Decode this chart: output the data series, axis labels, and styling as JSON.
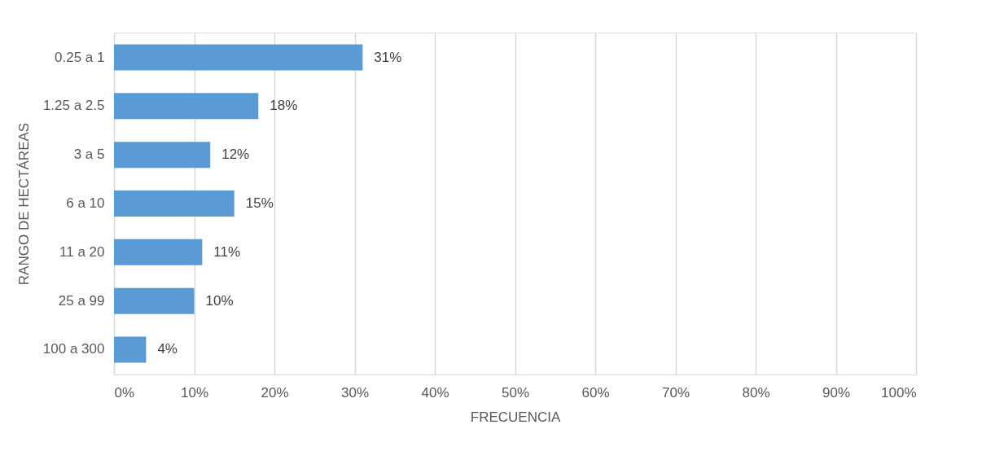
{
  "chart_data": {
    "type": "bar",
    "orientation": "horizontal",
    "xlabel": "FRECUENCIA",
    "ylabel": "RANGO DE HECTÁREAS",
    "categories": [
      "0.25 a 1",
      "1.25 a 2.5",
      "3 a 5",
      "6 a 10",
      "11 a 20",
      "25 a 99",
      "100 a 300"
    ],
    "values": [
      31,
      18,
      12,
      15,
      11,
      10,
      4
    ],
    "value_labels": [
      "31%",
      "18%",
      "12%",
      "15%",
      "11%",
      "10%",
      "4%"
    ],
    "color": "#5b9bd5",
    "xlim": [
      0,
      100
    ],
    "xticks": [
      {
        "value": 0,
        "label": "0%"
      },
      {
        "value": 10,
        "label": "10%"
      },
      {
        "value": 20,
        "label": "20%"
      },
      {
        "value": 30,
        "label": "30%"
      },
      {
        "value": 40,
        "label": "40%"
      },
      {
        "value": 50,
        "label": "50%"
      },
      {
        "value": 60,
        "label": "60%"
      },
      {
        "value": 70,
        "label": "70%"
      },
      {
        "value": 80,
        "label": "80%"
      },
      {
        "value": 90,
        "label": "90%"
      },
      {
        "value": 100,
        "label": "100%"
      }
    ],
    "grid": "x"
  }
}
